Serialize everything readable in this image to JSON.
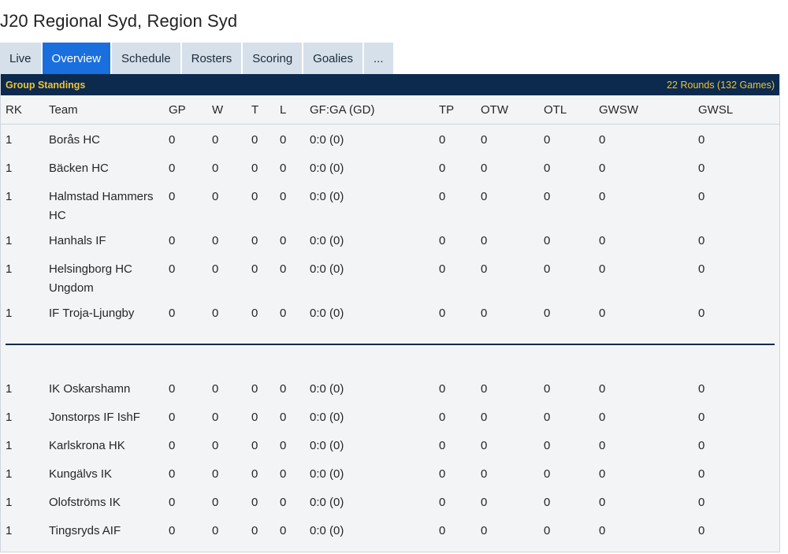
{
  "page": {
    "title": "J20 Regional Syd, Region Syd"
  },
  "tabs": [
    {
      "label": "Live",
      "active": false
    },
    {
      "label": "Overview",
      "active": true
    },
    {
      "label": "Schedule",
      "active": false
    },
    {
      "label": "Rosters",
      "active": false
    },
    {
      "label": "Scoring",
      "active": false
    },
    {
      "label": "Goalies",
      "active": false
    },
    {
      "label": "...",
      "active": false
    }
  ],
  "standings": {
    "heading": "Group Standings",
    "rounds": "22 Rounds (132 Games)",
    "columns": [
      "RK",
      "Team",
      "GP",
      "W",
      "T",
      "L",
      "GF:GA (GD)",
      "TP",
      "OTW",
      "OTL",
      "GWSW",
      "GWSL"
    ],
    "group1": [
      {
        "rk": "1",
        "team": "Borås HC",
        "gp": "0",
        "w": "0",
        "t": "0",
        "l": "0",
        "gfga": "0:0 (0)",
        "tp": "0",
        "otw": "0",
        "otl": "0",
        "gwsw": "0",
        "gwsl": "0"
      },
      {
        "rk": "1",
        "team": "Bäcken HC",
        "gp": "0",
        "w": "0",
        "t": "0",
        "l": "0",
        "gfga": "0:0 (0)",
        "tp": "0",
        "otw": "0",
        "otl": "0",
        "gwsw": "0",
        "gwsl": "0"
      },
      {
        "rk": "1",
        "team": "Halmstad Hammers HC",
        "gp": "0",
        "w": "0",
        "t": "0",
        "l": "0",
        "gfga": "0:0 (0)",
        "tp": "0",
        "otw": "0",
        "otl": "0",
        "gwsw": "0",
        "gwsl": "0"
      },
      {
        "rk": "1",
        "team": "Hanhals IF",
        "gp": "0",
        "w": "0",
        "t": "0",
        "l": "0",
        "gfga": "0:0 (0)",
        "tp": "0",
        "otw": "0",
        "otl": "0",
        "gwsw": "0",
        "gwsl": "0"
      },
      {
        "rk": "1",
        "team": "Helsingborg HC Ungdom",
        "gp": "0",
        "w": "0",
        "t": "0",
        "l": "0",
        "gfga": "0:0 (0)",
        "tp": "0",
        "otw": "0",
        "otl": "0",
        "gwsw": "0",
        "gwsl": "0"
      },
      {
        "rk": "1",
        "team": "IF Troja-Ljungby",
        "gp": "0",
        "w": "0",
        "t": "0",
        "l": "0",
        "gfga": "0:0 (0)",
        "tp": "0",
        "otw": "0",
        "otl": "0",
        "gwsw": "0",
        "gwsl": "0"
      }
    ],
    "group2": [
      {
        "rk": "1",
        "team": "IK Oskarshamn",
        "gp": "0",
        "w": "0",
        "t": "0",
        "l": "0",
        "gfga": "0:0 (0)",
        "tp": "0",
        "otw": "0",
        "otl": "0",
        "gwsw": "0",
        "gwsl": "0"
      },
      {
        "rk": "1",
        "team": "Jonstorps IF IshF",
        "gp": "0",
        "w": "0",
        "t": "0",
        "l": "0",
        "gfga": "0:0 (0)",
        "tp": "0",
        "otw": "0",
        "otl": "0",
        "gwsw": "0",
        "gwsl": "0"
      },
      {
        "rk": "1",
        "team": "Karlskrona HK",
        "gp": "0",
        "w": "0",
        "t": "0",
        "l": "0",
        "gfga": "0:0 (0)",
        "tp": "0",
        "otw": "0",
        "otl": "0",
        "gwsw": "0",
        "gwsl": "0"
      },
      {
        "rk": "1",
        "team": "Kungälvs IK",
        "gp": "0",
        "w": "0",
        "t": "0",
        "l": "0",
        "gfga": "0:0 (0)",
        "tp": "0",
        "otw": "0",
        "otl": "0",
        "gwsw": "0",
        "gwsl": "0"
      },
      {
        "rk": "1",
        "team": "Olofströms IK",
        "gp": "0",
        "w": "0",
        "t": "0",
        "l": "0",
        "gfga": "0:0 (0)",
        "tp": "0",
        "otw": "0",
        "otl": "0",
        "gwsw": "0",
        "gwsl": "0"
      },
      {
        "rk": "1",
        "team": "Tingsryds AIF",
        "gp": "0",
        "w": "0",
        "t": "0",
        "l": "0",
        "gfga": "0:0 (0)",
        "tp": "0",
        "otw": "0",
        "otl": "0",
        "gwsw": "0",
        "gwsl": "0"
      }
    ]
  },
  "colors": {
    "bar_bg": "#0b2a4e",
    "bar_text": "#f1c232",
    "tab_bg": "#d5e0ea",
    "tab_active": "#1a6fde",
    "panel_bg": "#f2f4f6"
  }
}
